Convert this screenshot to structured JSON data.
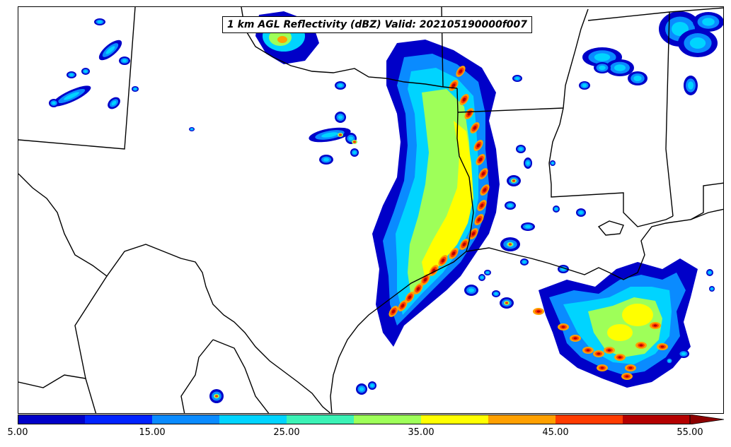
{
  "map": {
    "title": "1 km AGL Reflectivity (dBZ) Valid: 202105190000f007",
    "variable": "1 km AGL Reflectivity",
    "units": "dBZ",
    "valid_time": "202105190000f007"
  },
  "colorbar": {
    "bounds": [
      5,
      10,
      15,
      20,
      25,
      30,
      35,
      40,
      45,
      50,
      55
    ],
    "colors": [
      "#0000c8",
      "#0023ff",
      "#0a8bff",
      "#00d4ff",
      "#3cf2b6",
      "#9eff59",
      "#ffff00",
      "#ffa000",
      "#ff3c00",
      "#b40000"
    ],
    "extend_color": "#8c0000",
    "tick_labels": [
      "5.00",
      "15.00",
      "25.00",
      "35.00",
      "45.00",
      "55.00"
    ],
    "extend": "max"
  },
  "storms": {
    "outer_color": "#0000c8",
    "inner_colors": [
      "#0a8bff",
      "#00d4ff",
      "#9eff59",
      "#ffff00",
      "#ffa000",
      "#ff3c00",
      "#b40000"
    ]
  }
}
